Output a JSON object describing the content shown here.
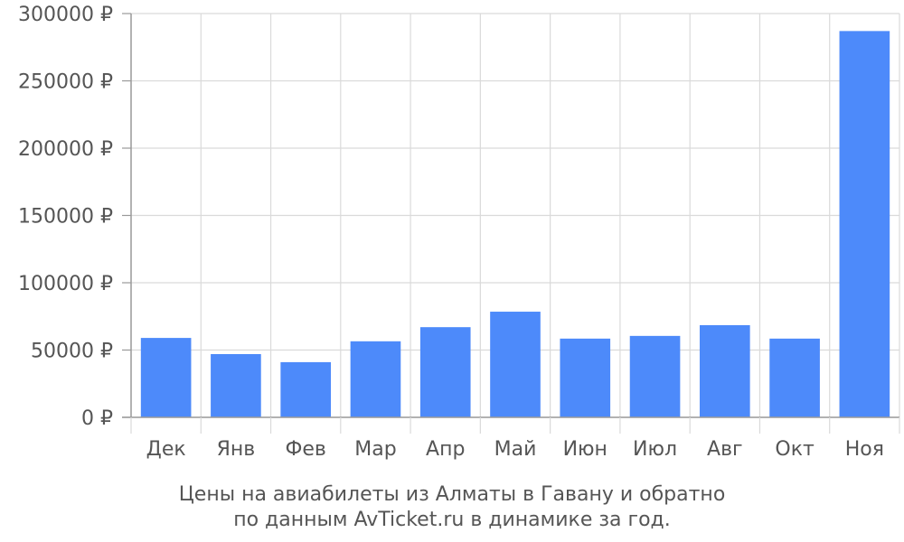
{
  "chart_data": {
    "type": "bar",
    "categories": [
      "Дек",
      "Янв",
      "Фев",
      "Мар",
      "Апр",
      "Май",
      "Июн",
      "Июл",
      "Авг",
      "Окт",
      "Ноя"
    ],
    "values": [
      59000,
      47000,
      41000,
      56500,
      67000,
      78500,
      58500,
      60500,
      68500,
      58500,
      287000
    ],
    "yticks": [
      "0 ₽",
      "50000 ₽",
      "100000 ₽",
      "150000 ₽",
      "200000 ₽",
      "250000 ₽",
      "300000 ₽"
    ],
    "ylim": [
      0,
      300000
    ],
    "grid": true,
    "bar_color": "#4d8afa",
    "caption": [
      "Цены на авиабилеты из Алматы в Гавану и обратно",
      "по данным AvTicket.ru в динамике за год."
    ]
  }
}
